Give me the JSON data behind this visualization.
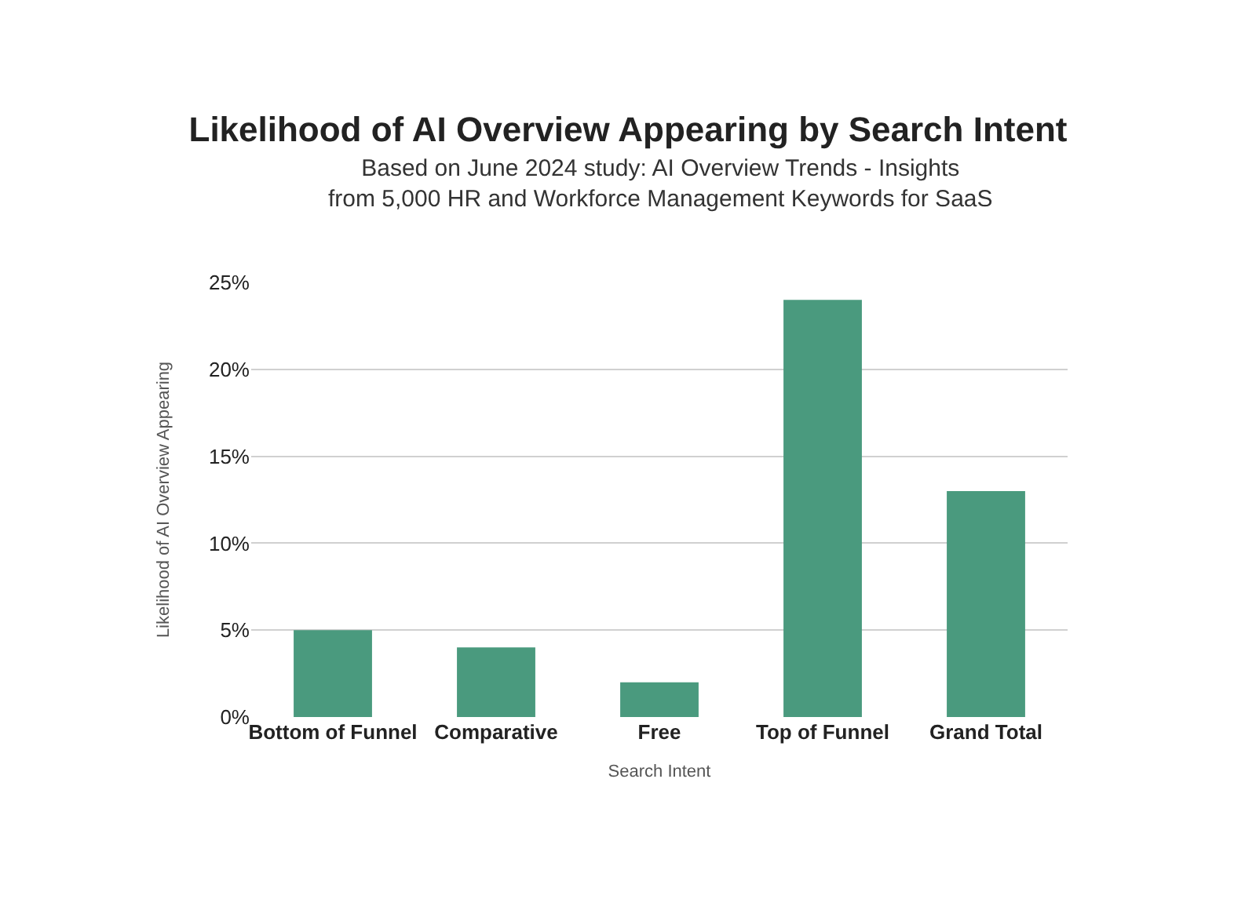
{
  "chart_data": {
    "type": "bar",
    "title": "Likelihood of AI Overview Appearing by Search Intent",
    "subtitle": "Based on June 2024 study: AI Overview Trends - Insights from 5,000 HR and Workforce Management Keywords for SaaS",
    "xlabel": "Search Intent",
    "ylabel": "Likelihood of AI Overview Appearing",
    "categories": [
      "Bottom of Funnel",
      "Comparative",
      "Free",
      "Top of Funnel",
      "Grand Total"
    ],
    "values": [
      5,
      4,
      2,
      24,
      13
    ],
    "color": "#4a9a7e",
    "ylim": [
      0,
      25
    ],
    "yticks": [
      {
        "value": 0,
        "label": "0%"
      },
      {
        "value": 5,
        "label": "5%"
      },
      {
        "value": 10,
        "label": "10%"
      },
      {
        "value": 15,
        "label": "15%"
      },
      {
        "value": 20,
        "label": "20%"
      },
      {
        "value": 25,
        "label": "25%"
      }
    ],
    "grid": "y"
  }
}
